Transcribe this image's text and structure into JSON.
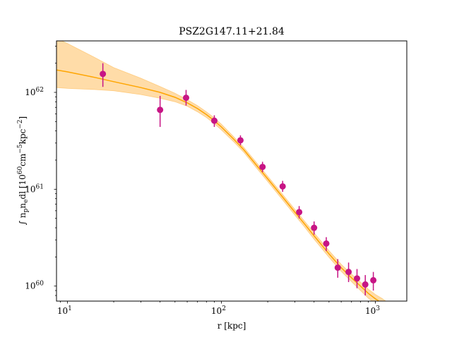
{
  "chart_data": {
    "type": "scatter",
    "title": "PSZ2G147.11+21.84",
    "xlabel": "r [kpc]",
    "ylabel": "∫ n",
    "ylabel_sub_1": "p",
    "ylabel_mid": "n",
    "ylabel_sub_2": "e",
    "ylabel_end": "dl [10",
    "ylabel_exp_1": "60",
    "ylabel_unit_1": "cm",
    "ylabel_exp_2": "−5",
    "ylabel_unit_2": "kpc",
    "ylabel_exp_3": "−2",
    "ylabel_close": "]",
    "xscale": "log",
    "yscale": "log",
    "xlim": [
      8.5,
      1600
    ],
    "ylim": [
      7e+59,
      3.4e+62
    ],
    "grid": false,
    "x_ticks": [
      {
        "value": 10,
        "base": "10",
        "exp": "1"
      },
      {
        "value": 100,
        "base": "10",
        "exp": "2"
      },
      {
        "value": 1000,
        "base": "10",
        "exp": "3"
      }
    ],
    "y_ticks": [
      {
        "value": 1e+60,
        "base": "10",
        "exp": "60"
      },
      {
        "value": 1e+61,
        "base": "10",
        "exp": "61"
      },
      {
        "value": 1e+62,
        "base": "10",
        "exp": "62"
      }
    ],
    "colors": {
      "model_line": "#ffa500",
      "model_band": "#ffdca8",
      "band_edge": "#ffb84d",
      "points": "#c71585"
    },
    "model_curve": {
      "x": [
        8.5,
        10,
        15,
        20,
        30,
        40,
        50,
        60,
        70,
        80,
        90,
        100,
        120,
        140,
        170,
        200,
        250,
        300,
        350,
        400,
        500,
        600,
        700,
        800,
        900,
        1000,
        1100,
        1200,
        1300
      ],
      "y": [
        1.7e+62,
        1.63e+62,
        1.43e+62,
        1.29e+62,
        1.12e+62,
        1e+62,
        8.9e+61,
        7.8e+61,
        6.8e+61,
        5.9e+61,
        5.1e+61,
        4.4e+61,
        3.3e+61,
        2.55e+61,
        1.75e+61,
        1.28e+61,
        8.3e+60,
        5.8e+60,
        4.3e+60,
        3.3e+60,
        2.15e+60,
        1.55e+60,
        1.22e+60,
        1e+60,
        8.4e+59,
        7.4e+59,
        6.7e+59,
        6.1e+59,
        5.6e+59
      ]
    },
    "model_band": {
      "x": [
        8.5,
        10,
        15,
        20,
        30,
        40,
        50,
        60,
        70,
        80,
        90,
        100,
        120,
        140,
        170,
        200,
        250,
        300,
        350,
        400,
        500,
        600,
        700,
        800,
        900,
        1000,
        1100,
        1200,
        1300
      ],
      "upper": [
        3.6e+62,
        3.2e+62,
        2.3e+62,
        1.8e+62,
        1.4e+62,
        1.15e+62,
        9.8e+61,
        8.4e+61,
        7.3e+61,
        6.3e+61,
        5.45e+61,
        4.7e+61,
        3.5e+61,
        2.7e+61,
        1.86e+61,
        1.36e+61,
        8.85e+60,
        6.2e+60,
        4.6e+60,
        3.55e+60,
        2.32e+60,
        1.68e+60,
        1.33e+60,
        1.1e+60,
        9.3e+59,
        8.2e+59,
        7.5e+59,
        6.8e+59,
        6.3e+59
      ],
      "lower": [
        1.12e+62,
        1.1e+62,
        1.07e+62,
        1.04e+62,
        9.5e+61,
        8.7e+61,
        8e+61,
        7.2e+61,
        6.3e+61,
        5.5e+61,
        4.75e+61,
        4.1e+61,
        3.1e+61,
        2.4e+61,
        1.64e+61,
        1.2e+61,
        7.75e+60,
        5.4e+60,
        4e+60,
        3.05e+60,
        1.98e+60,
        1.42e+60,
        1.11e+60,
        9e+59,
        7.5e+59,
        6.6e+59,
        6e+59,
        5.4e+59,
        5e+59
      ]
    },
    "series": [
      {
        "x": [
          17,
          40,
          59,
          90,
          133,
          185,
          250,
          320,
          400,
          480,
          570,
          670,
          760,
          860,
          970
        ],
        "y": [
          1.55e+62,
          6.6e+61,
          8.8e+61,
          5.1e+61,
          3.2e+61,
          1.7e+61,
          1.07e+61,
          5.8e+60,
          4e+60,
          2.75e+60,
          1.55e+60,
          1.4e+60,
          1.2e+60,
          1.04e+60,
          1.15e+60
        ],
        "yerr_low": [
          1.14e+62,
          4.4e+61,
          7.3e+61,
          4.4e+61,
          2.85e+61,
          1.5e+61,
          9.4e+60,
          5e+60,
          3.4e+60,
          2.3e+60,
          1.22e+60,
          1.1e+60,
          9.5e+59,
          8e+59,
          9e+59
        ],
        "yerr_high": [
          2e+62,
          9.2e+61,
          1.06e+62,
          5.8e+61,
          3.6e+61,
          1.92e+61,
          1.22e+61,
          6.7e+60,
          4.65e+60,
          3.2e+60,
          1.9e+60,
          1.75e+60,
          1.5e+60,
          1.3e+60,
          1.4e+60
        ]
      }
    ]
  }
}
